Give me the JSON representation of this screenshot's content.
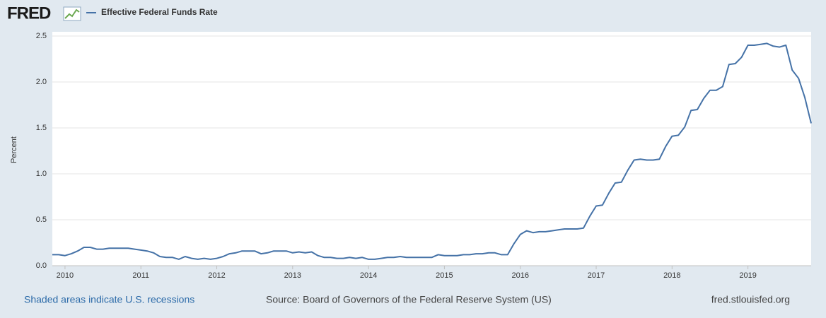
{
  "logo": "FRED",
  "chart_data": {
    "type": "line",
    "y_label": "Percent",
    "series": [
      {
        "name": "Effective Federal Funds Rate",
        "color": "#4572a7",
        "values": [
          0.12,
          0.12,
          0.11,
          0.13,
          0.16,
          0.2,
          0.2,
          0.18,
          0.18,
          0.19,
          0.19,
          0.19,
          0.19,
          0.18,
          0.17,
          0.16,
          0.14,
          0.1,
          0.09,
          0.09,
          0.07,
          0.1,
          0.08,
          0.07,
          0.08,
          0.07,
          0.08,
          0.1,
          0.13,
          0.14,
          0.16,
          0.16,
          0.16,
          0.13,
          0.14,
          0.16,
          0.16,
          0.16,
          0.14,
          0.15,
          0.14,
          0.15,
          0.11,
          0.09,
          0.09,
          0.08,
          0.08,
          0.09,
          0.08,
          0.09,
          0.07,
          0.07,
          0.08,
          0.09,
          0.09,
          0.1,
          0.09,
          0.09,
          0.09,
          0.09,
          0.09,
          0.12,
          0.11,
          0.11,
          0.11,
          0.12,
          0.12,
          0.13,
          0.13,
          0.14,
          0.14,
          0.12,
          0.12,
          0.24,
          0.34,
          0.38,
          0.36,
          0.37,
          0.37,
          0.38,
          0.39,
          0.4,
          0.4,
          0.4,
          0.41,
          0.54,
          0.65,
          0.66,
          0.79,
          0.9,
          0.91,
          1.04,
          1.15,
          1.16,
          1.15,
          1.15,
          1.16,
          1.3,
          1.41,
          1.42,
          1.51,
          1.69,
          1.7,
          1.82,
          1.91,
          1.91,
          1.95,
          2.19,
          2.2,
          2.27,
          2.4,
          2.4,
          2.41,
          2.42,
          2.39,
          2.38,
          2.4,
          2.13,
          2.04,
          1.83,
          1.55
        ]
      }
    ],
    "x": [
      2009.833,
      2009.917,
      2010,
      2010.083,
      2010.167,
      2010.25,
      2010.333,
      2010.417,
      2010.5,
      2010.583,
      2010.667,
      2010.75,
      2010.833,
      2010.917,
      2011,
      2011.083,
      2011.167,
      2011.25,
      2011.333,
      2011.417,
      2011.5,
      2011.583,
      2011.667,
      2011.75,
      2011.833,
      2011.917,
      2012,
      2012.083,
      2012.167,
      2012.25,
      2012.333,
      2012.417,
      2012.5,
      2012.583,
      2012.667,
      2012.75,
      2012.833,
      2012.917,
      2013,
      2013.083,
      2013.167,
      2013.25,
      2013.333,
      2013.417,
      2013.5,
      2013.583,
      2013.667,
      2013.75,
      2013.833,
      2013.917,
      2014,
      2014.083,
      2014.167,
      2014.25,
      2014.333,
      2014.417,
      2014.5,
      2014.583,
      2014.667,
      2014.75,
      2014.833,
      2014.917,
      2015,
      2015.083,
      2015.167,
      2015.25,
      2015.333,
      2015.417,
      2015.5,
      2015.583,
      2015.667,
      2015.75,
      2015.833,
      2015.917,
      2016,
      2016.083,
      2016.167,
      2016.25,
      2016.333,
      2016.417,
      2016.5,
      2016.583,
      2016.667,
      2016.75,
      2016.833,
      2016.917,
      2017,
      2017.083,
      2017.167,
      2017.25,
      2017.333,
      2017.417,
      2017.5,
      2017.583,
      2017.667,
      2017.75,
      2017.833,
      2017.917,
      2018,
      2018.083,
      2018.167,
      2018.25,
      2018.333,
      2018.417,
      2018.5,
      2018.583,
      2018.667,
      2018.75,
      2018.833,
      2018.917,
      2019,
      2019.083,
      2019.167,
      2019.25,
      2019.333,
      2019.417,
      2019.5,
      2019.583,
      2019.667,
      2019.75,
      2019.833
    ],
    "xlim": [
      2009.833,
      2019.833
    ],
    "xticks": [
      2010,
      2011,
      2012,
      2013,
      2014,
      2015,
      2016,
      2017,
      2018,
      2019
    ],
    "ylim": [
      0,
      2.5
    ],
    "yticks": [
      {
        "value": 0,
        "label": "0.0"
      },
      {
        "value": 0.5,
        "label": "0.5"
      },
      {
        "value": 1,
        "label": "1.0"
      },
      {
        "value": 1.5,
        "label": "1.5"
      },
      {
        "value": 2,
        "label": "2.0"
      },
      {
        "value": 2.5,
        "label": "2.5"
      }
    ],
    "grid": true
  },
  "footer": {
    "recessions_note": "Shaded areas indicate U.S. recessions",
    "source": "Source: Board of Governors of the Federal Reserve System (US)",
    "site": "fred.stlouisfed.org"
  }
}
